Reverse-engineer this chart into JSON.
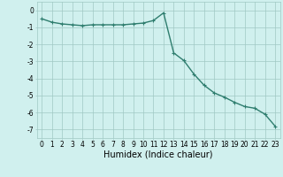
{
  "x": [
    0,
    1,
    2,
    3,
    4,
    5,
    6,
    7,
    8,
    9,
    10,
    11,
    12,
    13,
    14,
    15,
    16,
    17,
    18,
    19,
    20,
    21,
    22,
    23
  ],
  "y": [
    -0.5,
    -0.7,
    -0.8,
    -0.85,
    -0.9,
    -0.85,
    -0.85,
    -0.85,
    -0.85,
    -0.8,
    -0.75,
    -0.6,
    -0.15,
    -2.5,
    -2.95,
    -3.75,
    -4.4,
    -4.85,
    -5.1,
    -5.4,
    -5.65,
    -5.75,
    -6.1,
    -6.8
  ],
  "line_color": "#2e7d6e",
  "marker": "+",
  "marker_color": "#2e7d6e",
  "bg_color": "#d0f0ee",
  "grid_color": "#a0c8c4",
  "xlabel": "Humidex (Indice chaleur)",
  "ylabel": "",
  "xlim": [
    -0.5,
    23.5
  ],
  "ylim": [
    -7.5,
    0.5
  ],
  "yticks": [
    0,
    -1,
    -2,
    -3,
    -4,
    -5,
    -6,
    -7
  ],
  "xticks": [
    0,
    1,
    2,
    3,
    4,
    5,
    6,
    7,
    8,
    9,
    10,
    11,
    12,
    13,
    14,
    15,
    16,
    17,
    18,
    19,
    20,
    21,
    22,
    23
  ],
  "tick_label_fontsize": 5.5,
  "xlabel_fontsize": 7,
  "line_width": 1.0,
  "marker_size": 3
}
